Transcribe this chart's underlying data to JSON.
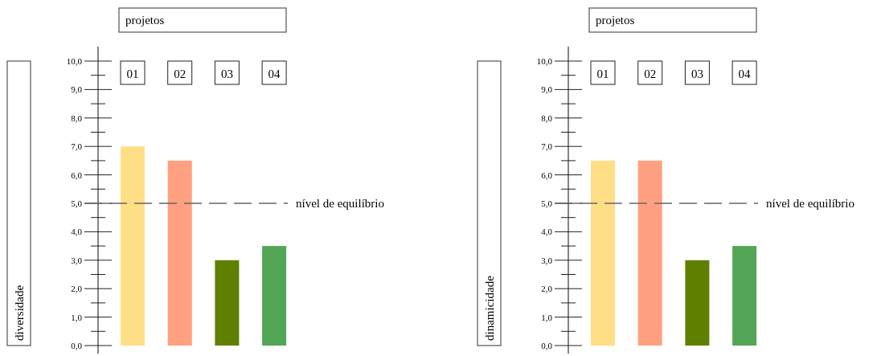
{
  "chart_data": [
    {
      "type": "bar",
      "title": "projetos",
      "ylabel": "diversidade",
      "categories": [
        "01",
        "02",
        "03",
        "04"
      ],
      "values": [
        7.0,
        6.5,
        3.0,
        3.5
      ],
      "colors": [
        "#ffdf85",
        "#ffa080",
        "#5f7f00",
        "#52a655"
      ],
      "ylim": [
        0,
        10
      ],
      "yticks": [
        {
          "value": 0,
          "label": "0,0"
        },
        {
          "value": 0.5,
          "label": null
        },
        {
          "value": 1,
          "label": "1,0"
        },
        {
          "value": 1.5,
          "label": null
        },
        {
          "value": 2,
          "label": "2,0"
        },
        {
          "value": 2.5,
          "label": null
        },
        {
          "value": 3,
          "label": "3,0"
        },
        {
          "value": 3.5,
          "label": null
        },
        {
          "value": 4,
          "label": "4,0"
        },
        {
          "value": 4.5,
          "label": null
        },
        {
          "value": 5,
          "label": "5,0"
        },
        {
          "value": 5.5,
          "label": null
        },
        {
          "value": 6,
          "label": "6,0"
        },
        {
          "value": 6.5,
          "label": null
        },
        {
          "value": 7,
          "label": "7,0"
        },
        {
          "value": 7.5,
          "label": null
        },
        {
          "value": 8,
          "label": "8,0"
        },
        {
          "value": 8.5,
          "label": null
        },
        {
          "value": 9,
          "label": "9,0"
        },
        {
          "value": 9.5,
          "label": null
        },
        {
          "value": 10,
          "label": "10,0"
        }
      ],
      "ref_lines": [
        {
          "axis": "y",
          "value": 5,
          "label": "nível de equilíbrio",
          "color": "#666666",
          "line_style": "dashed"
        }
      ]
    },
    {
      "type": "bar",
      "title": "projetos",
      "ylabel": "dinamicidade",
      "categories": [
        "01",
        "02",
        "03",
        "04"
      ],
      "values": [
        6.5,
        6.5,
        3.0,
        3.5
      ],
      "colors": [
        "#ffdf85",
        "#ffa080",
        "#5f7f00",
        "#52a655"
      ],
      "ylim": [
        0,
        10
      ],
      "yticks": [
        {
          "value": 0,
          "label": "0,0"
        },
        {
          "value": 0.5,
          "label": null
        },
        {
          "value": 1,
          "label": "1,0"
        },
        {
          "value": 1.5,
          "label": null
        },
        {
          "value": 2,
          "label": "2,0"
        },
        {
          "value": 2.5,
          "label": null
        },
        {
          "value": 3,
          "label": "3,0"
        },
        {
          "value": 3.5,
          "label": null
        },
        {
          "value": 4,
          "label": "4,0"
        },
        {
          "value": 4.5,
          "label": null
        },
        {
          "value": 5,
          "label": "5,0"
        },
        {
          "value": 5.5,
          "label": null
        },
        {
          "value": 6,
          "label": "6,0"
        },
        {
          "value": 6.5,
          "label": null
        },
        {
          "value": 7,
          "label": "7,0"
        },
        {
          "value": 7.5,
          "label": null
        },
        {
          "value": 8,
          "label": "8,0"
        },
        {
          "value": 8.5,
          "label": null
        },
        {
          "value": 9,
          "label": "9,0"
        },
        {
          "value": 9.5,
          "label": null
        },
        {
          "value": 10,
          "label": "10,0"
        }
      ],
      "ref_lines": [
        {
          "axis": "y",
          "value": 5,
          "label": "nível de equilíbrio",
          "color": "#666666",
          "line_style": "dashed"
        }
      ]
    }
  ]
}
